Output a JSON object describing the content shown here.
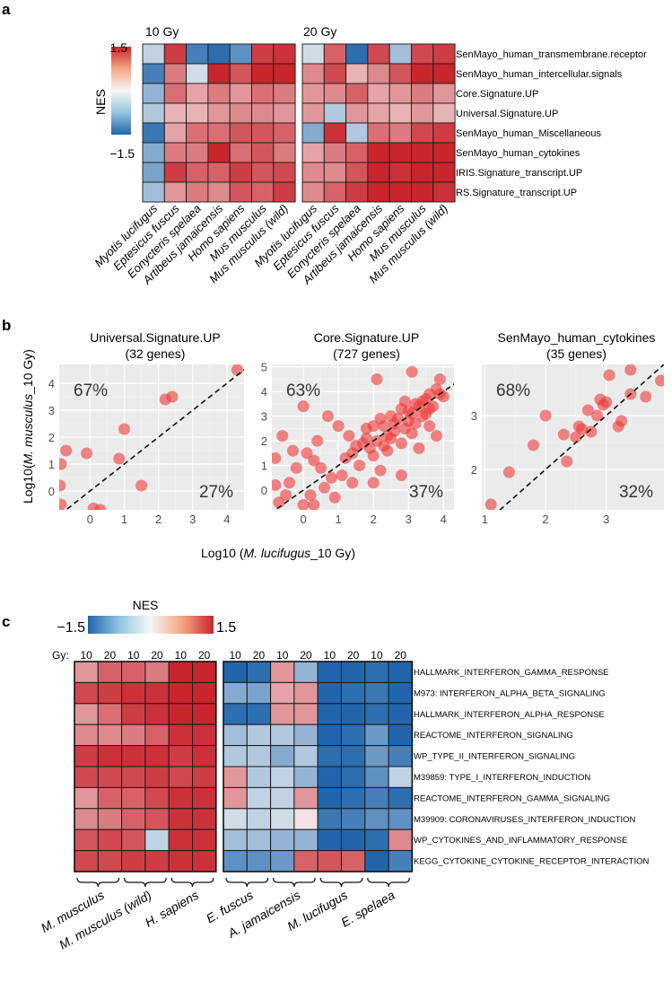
{
  "panel_labels": {
    "a": "a",
    "b": "b",
    "c": "c"
  },
  "colors": {
    "low": "#2166ac",
    "mid": "#f7f7f7",
    "high": "#c8252d",
    "grid_bg": "#ebebeb",
    "point": "#ef3b3b"
  },
  "chart_data": [
    {
      "type": "heatmap",
      "panel": "a",
      "legend_title": "NES",
      "legend_max_label": "1.5",
      "legend_min_label": "−1.5",
      "zlim": [
        -1.5,
        1.5
      ],
      "group_titles": [
        "10 Gy",
        "20 Gy"
      ],
      "columns": [
        "Myotis lucifugus",
        "Eptesicus fuscus",
        "Eonycteris spelaea",
        "Artibeus jamaicensis",
        "Homo sapiens",
        "Mus musculus",
        "Mus musculus (wild)"
      ],
      "rows": [
        "SenMayo_human_transmembrane.receptor",
        "SenMayo_human_intercellular.signals",
        "Core.Signature.UP",
        "Universal.Signature.UP",
        "SenMayo_human_Miscellaneous",
        "SenMayo_human_cytokines",
        "IRIS.Signature_transcript.UP",
        "RS.Signature_transcript.UP"
      ],
      "values_10gy": [
        [
          -0.3,
          1.3,
          -1.2,
          -1.4,
          -1.0,
          1.3,
          1.4
        ],
        [
          -1.2,
          0.8,
          -0.2,
          1.5,
          1.1,
          1.5,
          1.5
        ],
        [
          -0.6,
          0.9,
          0.5,
          0.8,
          0.6,
          0.9,
          0.8
        ],
        [
          -0.4,
          0.4,
          0.4,
          0.6,
          0.7,
          0.7,
          0.6
        ],
        [
          -1.3,
          0.5,
          0.9,
          0.9,
          1.1,
          1.1,
          1.0
        ],
        [
          -0.7,
          0.8,
          0.8,
          1.5,
          0.9,
          1.1,
          0.8
        ],
        [
          -0.8,
          1.3,
          1.0,
          1.0,
          1.3,
          1.1,
          1.2
        ],
        [
          -0.5,
          0.6,
          0.8,
          0.7,
          1.1,
          1.0,
          1.3
        ]
      ],
      "values_20gy": [
        [
          -0.2,
          1.0,
          -1.4,
          1.2,
          -0.5,
          1.2,
          1.3
        ],
        [
          0.7,
          1.2,
          0.4,
          0.7,
          1.1,
          1.5,
          1.5
        ],
        [
          0.6,
          0.7,
          1.0,
          0.5,
          0.6,
          0.8,
          0.6
        ],
        [
          0.6,
          -0.4,
          0.6,
          0.5,
          0.4,
          0.6,
          0.4
        ],
        [
          -0.7,
          1.4,
          -0.4,
          0.9,
          0.8,
          1.2,
          1.3
        ],
        [
          0.5,
          0.8,
          1.0,
          1.5,
          1.5,
          1.5,
          1.5
        ],
        [
          0.7,
          0.7,
          1.1,
          1.5,
          1.4,
          1.5,
          1.5
        ],
        [
          0.7,
          1.0,
          1.3,
          1.5,
          1.5,
          1.5,
          1.4
        ]
      ]
    },
    {
      "type": "scatter",
      "panel": "b",
      "xlabel_prefix": "Log10 (",
      "xlabel_italic": "M. lucifugus",
      "xlabel_suffix": "_10 Gy)",
      "ylabel_prefix": "Log10(",
      "ylabel_italic": "M. musculus",
      "ylabel_suffix": "_10 Gy)",
      "subplots": [
        {
          "title": "Universal.Signature.UP",
          "subtitle": "(32 genes)",
          "upper_pct": "67%",
          "lower_pct": "27%",
          "xlim": [
            -0.9,
            4.5
          ],
          "ylim": [
            -0.7,
            4.7
          ],
          "xticks": [
            0,
            1,
            2,
            3,
            4
          ],
          "yticks": [
            0,
            1,
            2,
            3,
            4
          ],
          "points": [
            [
              4.3,
              4.5
            ],
            [
              2.2,
              3.4
            ],
            [
              2.4,
              3.5
            ],
            [
              1.0,
              2.3
            ],
            [
              0.85,
              1.2
            ],
            [
              -0.7,
              1.5
            ],
            [
              -0.1,
              1.4
            ],
            [
              1.5,
              0.2
            ],
            [
              -0.85,
              1.0
            ],
            [
              -0.88,
              0.2
            ],
            [
              -0.85,
              -0.5
            ],
            [
              0.1,
              -0.65
            ],
            [
              0.3,
              -0.7
            ]
          ]
        },
        {
          "title": "Core.Signature.UP",
          "subtitle": "(727 genes)",
          "upper_pct": "63%",
          "lower_pct": "37%",
          "xlim": [
            -0.9,
            4.3
          ],
          "ylim": [
            -0.8,
            5.1
          ],
          "xticks": [
            0,
            1,
            2,
            3,
            4
          ],
          "yticks": [
            0,
            1,
            2,
            3,
            4,
            5
          ],
          "points": [
            [
              3.1,
              4.8
            ],
            [
              2.1,
              4.5
            ],
            [
              3.9,
              4.5
            ],
            [
              0.0,
              3.4
            ],
            [
              0.7,
              3.0
            ],
            [
              1.0,
              2.6
            ],
            [
              1.3,
              2.2
            ],
            [
              1.8,
              2.1
            ],
            [
              -0.6,
              2.2
            ],
            [
              0.1,
              1.5
            ],
            [
              0.3,
              1.2
            ],
            [
              -0.2,
              0.9
            ],
            [
              1.2,
              1.3
            ],
            [
              1.6,
              1.0
            ],
            [
              0.8,
              0.5
            ],
            [
              -0.4,
              0.3
            ],
            [
              0.2,
              -0.2
            ],
            [
              0.6,
              0.1
            ],
            [
              2.2,
              0.8
            ],
            [
              2.0,
              0.3
            ],
            [
              2.8,
              0.6
            ],
            [
              3.3,
              1.7
            ],
            [
              3.8,
              2.2
            ],
            [
              0.4,
              2.0
            ],
            [
              1.5,
              1.8
            ],
            [
              2.5,
              3.0
            ],
            [
              2.8,
              3.3
            ],
            [
              3.2,
              3.5
            ],
            [
              3.6,
              3.9
            ],
            [
              2.3,
              2.6
            ],
            [
              2.6,
              2.4
            ],
            [
              3.0,
              2.8
            ],
            [
              3.4,
              3.0
            ],
            [
              3.7,
              3.4
            ],
            [
              2.0,
              2.6
            ],
            [
              2.2,
              2.9
            ],
            [
              2.9,
              3.6
            ],
            [
              3.5,
              3.7
            ],
            [
              3.8,
              4.1
            ],
            [
              1.8,
              2.5
            ],
            [
              2.4,
              2.2
            ],
            [
              2.7,
              2.9
            ],
            [
              3.1,
              3.1
            ],
            [
              3.3,
              3.4
            ],
            [
              3.6,
              3.3
            ],
            [
              4.0,
              3.8
            ],
            [
              1.9,
              1.7
            ],
            [
              2.1,
              2.0
            ],
            [
              2.5,
              2.1
            ],
            [
              2.9,
              2.5
            ],
            [
              3.2,
              2.7
            ],
            [
              3.5,
              3.1
            ],
            [
              1.4,
              1.5
            ],
            [
              1.7,
              1.9
            ],
            [
              2.3,
              1.8
            ],
            [
              2.6,
              2.7
            ],
            [
              3.0,
              3.2
            ],
            [
              3.4,
              3.6
            ],
            [
              3.9,
              3.9
            ],
            [
              2.0,
              1.4
            ],
            [
              2.4,
              1.6
            ],
            [
              2.8,
              1.9
            ],
            [
              3.1,
              2.3
            ],
            [
              3.6,
              2.6
            ],
            [
              -0.8,
              1.3
            ],
            [
              -0.8,
              0.2
            ],
            [
              -0.7,
              -0.5
            ],
            [
              0.0,
              -0.6
            ],
            [
              0.9,
              -0.3
            ],
            [
              1.1,
              0.6
            ],
            [
              0.5,
              0.9
            ],
            [
              1.4,
              0.3
            ],
            [
              -0.3,
              1.6
            ],
            [
              -0.5,
              -0.2
            ],
            [
              0.3,
              -0.6
            ]
          ]
        },
        {
          "title": "SenMayo_human_cytokines",
          "subtitle": "(35 genes)",
          "upper_pct": "68%",
          "lower_pct": "32%",
          "xlim": [
            0.95,
            3.95
          ],
          "ylim": [
            1.25,
            3.95
          ],
          "xticks": [
            1,
            2,
            3
          ],
          "yticks": [
            2,
            3
          ],
          "points": [
            [
              1.1,
              1.35
            ],
            [
              1.4,
              1.95
            ],
            [
              1.8,
              2.45
            ],
            [
              2.3,
              2.65
            ],
            [
              2.35,
              2.15
            ],
            [
              2.5,
              2.6
            ],
            [
              2.55,
              2.8
            ],
            [
              2.6,
              2.75
            ],
            [
              2.75,
              2.7
            ],
            [
              2.85,
              3.0
            ],
            [
              2.9,
              3.3
            ],
            [
              3.0,
              3.25
            ],
            [
              2.95,
              3.2
            ],
            [
              3.05,
              3.75
            ],
            [
              3.2,
              2.8
            ],
            [
              3.25,
              2.9
            ],
            [
              3.4,
              3.4
            ],
            [
              3.4,
              3.85
            ],
            [
              3.65,
              3.35
            ],
            [
              3.9,
              3.65
            ],
            [
              2.0,
              3.0
            ],
            [
              2.7,
              3.1
            ]
          ]
        }
      ]
    },
    {
      "type": "heatmap",
      "panel": "c",
      "legend_title": "NES",
      "legend_min_label": "−1.5",
      "legend_max_label": "1.5",
      "zlim": [
        -1.5,
        1.5
      ],
      "gy_label": "Gy:",
      "dose_labels": [
        "10",
        "20",
        "10",
        "20",
        "10",
        "20",
        "10",
        "20",
        "10",
        "20",
        "10",
        "20",
        "10",
        "20"
      ],
      "left_groups": [
        "M. musculus",
        "M. musculus (wild)",
        "H. sapiens"
      ],
      "right_groups": [
        "E. fuscus",
        "A. jamaicensis",
        "M. lucifugus",
        "E. spelaea"
      ],
      "rows": [
        "HALLMARK_INTERFERON_GAMMA_RESPONSE",
        "M973: INTERFERON_ALPHA_BETA_SIGNALING",
        "HALLMARK_INTERFERON_ALPHA_RESPONSE",
        "REACTOME_INTERFERON_SIGNALING",
        "WP_TYPE_II_INTERFERON_SIGNALING",
        "M39859: TYPE_I_INTERFERON_INDUCTION",
        "REACTOME_INTERFERON_GAMMA_SIGNALING",
        "M39909: CORONAVIRUSES_INTERFERON_INDUCTION",
        "WP_CYTOKINES_AND_INFLAMMATORY_RESPONSE",
        "KEGG_CYTOKINE_CYTOKINE_RECEPTOR_INTERACTION"
      ],
      "values_left": [
        [
          0.6,
          1.0,
          1.0,
          0.8,
          1.5,
          1.5
        ],
        [
          1.2,
          1.3,
          1.4,
          1.4,
          1.5,
          1.5
        ],
        [
          0.6,
          0.9,
          1.3,
          1.4,
          1.5,
          1.5
        ],
        [
          0.7,
          0.7,
          0.8,
          1.0,
          1.4,
          1.4
        ],
        [
          1.3,
          1.4,
          1.4,
          1.4,
          1.3,
          1.4
        ],
        [
          1.2,
          1.2,
          1.2,
          1.3,
          1.2,
          1.3
        ],
        [
          0.6,
          1.0,
          1.0,
          1.2,
          1.4,
          1.4
        ],
        [
          0.7,
          0.8,
          1.0,
          1.1,
          1.4,
          1.4
        ],
        [
          1.1,
          1.2,
          1.1,
          -0.3,
          1.4,
          1.4
        ],
        [
          1.2,
          1.2,
          1.3,
          1.3,
          1.4,
          1.4
        ]
      ],
      "values_right": [
        [
          -1.5,
          -1.4,
          0.6,
          -0.6,
          -1.5,
          -1.5,
          -1.4,
          -1.5
        ],
        [
          -0.7,
          -0.8,
          0.5,
          0.6,
          -1.5,
          -1.4,
          -1.3,
          -1.5
        ],
        [
          -1.4,
          -1.4,
          0.6,
          0.6,
          -1.5,
          -1.5,
          -1.4,
          -1.5
        ],
        [
          -0.5,
          -0.4,
          -0.4,
          -0.6,
          -1.5,
          -1.4,
          -0.9,
          -1.5
        ],
        [
          -0.4,
          -0.4,
          -0.7,
          -0.4,
          -1.4,
          -1.4,
          -0.9,
          -1.2
        ],
        [
          0.6,
          -0.4,
          -0.3,
          -0.6,
          -1.5,
          -1.4,
          -1.0,
          -0.3
        ],
        [
          0.6,
          -0.3,
          -0.3,
          0.6,
          -1.5,
          -1.4,
          -1.2,
          -1.4
        ],
        [
          -0.2,
          -0.3,
          -0.2,
          0.1,
          -1.3,
          -1.2,
          -1.0,
          -1.0
        ],
        [
          -0.5,
          -0.5,
          -0.6,
          -0.6,
          -1.5,
          -1.5,
          -1.4,
          0.7
        ],
        [
          -1.0,
          -1.0,
          -0.9,
          1.0,
          1.1,
          1.0,
          -1.5,
          -1.2
        ]
      ]
    }
  ]
}
